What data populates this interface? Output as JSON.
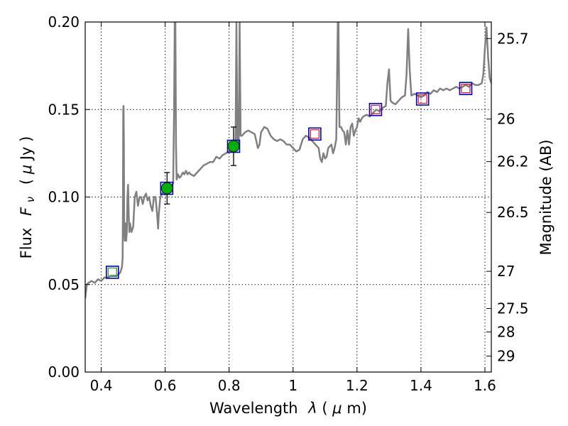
{
  "chart_data": {
    "type": "line",
    "title": "",
    "xlabel": "Wavelength",
    "xlabel_symbol": "λ",
    "xlabel_unit_open": " (",
    "xlabel_unit_mu": "μ",
    "xlabel_unit_rest": "m)",
    "ylabel": "Flux",
    "ylabel_symbol": "F",
    "ylabel_symbol_sub": "ν",
    "ylabel_unit_open": "( ",
    "ylabel_unit_mu": "μ",
    "ylabel_unit_rest": "Jy )",
    "y2label": "Magnitude (AB)",
    "xlim": [
      0.35,
      1.62
    ],
    "ylim": [
      0.0,
      0.2
    ],
    "grid": true,
    "x_ticks": [
      {
        "value": 0.4,
        "label": "0.4"
      },
      {
        "value": 0.6,
        "label": "0.6"
      },
      {
        "value": 0.8,
        "label": "0.8"
      },
      {
        "value": 1.0,
        "label": "1"
      },
      {
        "value": 1.2,
        "label": "1.2"
      },
      {
        "value": 1.4,
        "label": "1.4"
      },
      {
        "value": 1.6,
        "label": "1.6"
      }
    ],
    "y_ticks": [
      {
        "value": 0.0,
        "label": "0.00"
      },
      {
        "value": 0.05,
        "label": "0.05"
      },
      {
        "value": 0.1,
        "label": "0.10"
      },
      {
        "value": 0.15,
        "label": "0.15"
      },
      {
        "value": 0.2,
        "label": "0.20"
      }
    ],
    "y2_ticks": [
      {
        "value": 25.7,
        "label": "25.7"
      },
      {
        "value": 26.0,
        "label": "26"
      },
      {
        "value": 26.2,
        "label": "26.2"
      },
      {
        "value": 26.5,
        "label": "26.5"
      },
      {
        "value": 27.0,
        "label": "27"
      },
      {
        "value": 27.5,
        "label": "27.5"
      },
      {
        "value": 28.0,
        "label": "28"
      },
      {
        "value": 29.0,
        "label": "29"
      }
    ],
    "model_spectrum": {
      "color": "#808080",
      "points": [
        [
          0.35,
          0.042
        ],
        [
          0.355,
          0.05
        ],
        [
          0.36,
          0.051
        ],
        [
          0.37,
          0.052
        ],
        [
          0.38,
          0.051
        ],
        [
          0.39,
          0.053
        ],
        [
          0.4,
          0.052
        ],
        [
          0.41,
          0.054
        ],
        [
          0.42,
          0.054
        ],
        [
          0.43,
          0.055
        ],
        [
          0.44,
          0.055
        ],
        [
          0.45,
          0.055
        ],
        [
          0.455,
          0.056
        ],
        [
          0.46,
          0.057
        ],
        [
          0.465,
          0.06
        ],
        [
          0.467,
          0.065
        ],
        [
          0.468,
          0.09
        ],
        [
          0.469,
          0.15
        ],
        [
          0.47,
          0.152
        ],
        [
          0.471,
          0.13
        ],
        [
          0.472,
          0.08
        ],
        [
          0.474,
          0.075
        ],
        [
          0.476,
          0.085
        ],
        [
          0.478,
          0.075
        ],
        [
          0.48,
          0.08
        ],
        [
          0.482,
          0.1
        ],
        [
          0.484,
          0.107
        ],
        [
          0.486,
          0.09
        ],
        [
          0.488,
          0.08
        ],
        [
          0.49,
          0.085
        ],
        [
          0.495,
          0.08
        ],
        [
          0.5,
          0.083
        ],
        [
          0.505,
          0.1
        ],
        [
          0.51,
          0.103
        ],
        [
          0.515,
          0.095
        ],
        [
          0.52,
          0.1
        ],
        [
          0.525,
          0.1
        ],
        [
          0.53,
          0.096
        ],
        [
          0.535,
          0.1
        ],
        [
          0.54,
          0.102
        ],
        [
          0.545,
          0.098
        ],
        [
          0.55,
          0.1
        ],
        [
          0.555,
          0.095
        ],
        [
          0.56,
          0.092
        ],
        [
          0.565,
          0.1
        ],
        [
          0.57,
          0.1
        ],
        [
          0.575,
          0.09
        ],
        [
          0.578,
          0.082
        ],
        [
          0.58,
          0.09
        ],
        [
          0.585,
          0.1
        ],
        [
          0.59,
          0.102
        ],
        [
          0.6,
          0.103
        ],
        [
          0.61,
          0.104
        ],
        [
          0.62,
          0.106
        ],
        [
          0.625,
          0.108
        ],
        [
          0.628,
          0.15
        ],
        [
          0.63,
          0.2
        ],
        [
          0.632,
          0.2
        ],
        [
          0.634,
          0.13
        ],
        [
          0.636,
          0.11
        ],
        [
          0.64,
          0.113
        ],
        [
          0.645,
          0.111
        ],
        [
          0.65,
          0.112
        ],
        [
          0.655,
          0.114
        ],
        [
          0.66,
          0.113
        ],
        [
          0.665,
          0.115
        ],
        [
          0.67,
          0.113
        ],
        [
          0.675,
          0.114
        ],
        [
          0.68,
          0.113
        ],
        [
          0.69,
          0.112
        ],
        [
          0.7,
          0.114
        ],
        [
          0.71,
          0.116
        ],
        [
          0.72,
          0.118
        ],
        [
          0.73,
          0.119
        ],
        [
          0.74,
          0.12
        ],
        [
          0.75,
          0.12
        ],
        [
          0.76,
          0.123
        ],
        [
          0.77,
          0.122
        ],
        [
          0.78,
          0.124
        ],
        [
          0.79,
          0.125
        ],
        [
          0.8,
          0.126
        ],
        [
          0.805,
          0.127
        ],
        [
          0.81,
          0.128
        ],
        [
          0.815,
          0.13
        ],
        [
          0.82,
          0.13
        ],
        [
          0.823,
          0.2
        ],
        [
          0.826,
          0.133
        ],
        [
          0.83,
          0.13
        ],
        [
          0.833,
          0.2
        ],
        [
          0.836,
          0.135
        ],
        [
          0.84,
          0.135
        ],
        [
          0.85,
          0.137
        ],
        [
          0.86,
          0.138
        ],
        [
          0.87,
          0.137
        ],
        [
          0.88,
          0.136
        ],
        [
          0.885,
          0.132
        ],
        [
          0.89,
          0.128
        ],
        [
          0.895,
          0.13
        ],
        [
          0.9,
          0.137
        ],
        [
          0.91,
          0.14
        ],
        [
          0.92,
          0.139
        ],
        [
          0.93,
          0.135
        ],
        [
          0.94,
          0.133
        ],
        [
          0.95,
          0.132
        ],
        [
          0.96,
          0.133
        ],
        [
          0.97,
          0.132
        ],
        [
          0.98,
          0.13
        ],
        [
          0.99,
          0.13
        ],
        [
          1.0,
          0.128
        ],
        [
          1.01,
          0.126
        ],
        [
          1.02,
          0.127
        ],
        [
          1.03,
          0.133
        ],
        [
          1.04,
          0.135
        ],
        [
          1.05,
          0.134
        ],
        [
          1.06,
          0.132
        ],
        [
          1.07,
          0.13
        ],
        [
          1.08,
          0.128
        ],
        [
          1.085,
          0.122
        ],
        [
          1.09,
          0.12
        ],
        [
          1.095,
          0.125
        ],
        [
          1.1,
          0.122
        ],
        [
          1.105,
          0.123
        ],
        [
          1.11,
          0.128
        ],
        [
          1.12,
          0.13
        ],
        [
          1.125,
          0.125
        ],
        [
          1.13,
          0.128
        ],
        [
          1.135,
          0.133
        ],
        [
          1.14,
          0.2
        ],
        [
          1.142,
          0.2
        ],
        [
          1.145,
          0.14
        ],
        [
          1.15,
          0.14
        ],
        [
          1.155,
          0.138
        ],
        [
          1.16,
          0.137
        ],
        [
          1.165,
          0.13
        ],
        [
          1.17,
          0.138
        ],
        [
          1.175,
          0.13
        ],
        [
          1.18,
          0.14
        ],
        [
          1.185,
          0.142
        ],
        [
          1.19,
          0.135
        ],
        [
          1.195,
          0.138
        ],
        [
          1.2,
          0.14
        ],
        [
          1.205,
          0.145
        ],
        [
          1.21,
          0.143
        ],
        [
          1.215,
          0.145
        ],
        [
          1.22,
          0.146
        ],
        [
          1.23,
          0.147
        ],
        [
          1.24,
          0.146
        ],
        [
          1.25,
          0.148
        ],
        [
          1.26,
          0.15
        ],
        [
          1.27,
          0.149
        ],
        [
          1.28,
          0.151
        ],
        [
          1.29,
          0.152
        ],
        [
          1.295,
          0.165
        ],
        [
          1.3,
          0.173
        ],
        [
          1.305,
          0.155
        ],
        [
          1.31,
          0.154
        ],
        [
          1.32,
          0.153
        ],
        [
          1.33,
          0.155
        ],
        [
          1.34,
          0.157
        ],
        [
          1.35,
          0.158
        ],
        [
          1.355,
          0.17
        ],
        [
          1.36,
          0.196
        ],
        [
          1.365,
          0.172
        ],
        [
          1.37,
          0.158
        ],
        [
          1.38,
          0.159
        ],
        [
          1.39,
          0.158
        ],
        [
          1.4,
          0.157
        ],
        [
          1.41,
          0.158
        ],
        [
          1.42,
          0.16
        ],
        [
          1.43,
          0.159
        ],
        [
          1.44,
          0.161
        ],
        [
          1.45,
          0.16
        ],
        [
          1.46,
          0.162
        ],
        [
          1.47,
          0.161
        ],
        [
          1.48,
          0.162
        ],
        [
          1.49,
          0.161
        ],
        [
          1.5,
          0.162
        ],
        [
          1.51,
          0.163
        ],
        [
          1.52,
          0.162
        ],
        [
          1.53,
          0.163
        ],
        [
          1.54,
          0.164
        ],
        [
          1.55,
          0.163
        ],
        [
          1.56,
          0.165
        ],
        [
          1.57,
          0.164
        ],
        [
          1.58,
          0.164
        ],
        [
          1.59,
          0.165
        ],
        [
          1.595,
          0.17
        ],
        [
          1.6,
          0.185
        ],
        [
          1.605,
          0.197
        ],
        [
          1.61,
          0.18
        ],
        [
          1.615,
          0.168
        ],
        [
          1.62,
          0.165
        ]
      ]
    },
    "model_photometry": [
      {
        "x": 0.435,
        "y": 0.057,
        "box_color": "#0000cc",
        "inner_color": "#2ca02c"
      },
      {
        "x": 0.605,
        "y": 0.105,
        "box_color": "#0000cc",
        "inner_color": "#2ca02c"
      },
      {
        "x": 0.814,
        "y": 0.129,
        "box_color": "#0000cc",
        "inner_color": "#2ca02c"
      },
      {
        "x": 1.068,
        "y": 0.136,
        "box_color": "#0000cc",
        "inner_color": "#d62728"
      },
      {
        "x": 1.258,
        "y": 0.15,
        "box_color": "#0000cc",
        "inner_color": "#d62728"
      },
      {
        "x": 1.405,
        "y": 0.156,
        "box_color": "#0000cc",
        "inner_color": "#d62728"
      },
      {
        "x": 1.54,
        "y": 0.162,
        "box_color": "#0000cc",
        "inner_color": "#d62728"
      }
    ],
    "observed": [
      {
        "x": 0.606,
        "y": 0.105,
        "yerr": 0.009,
        "color": "#00b000"
      },
      {
        "x": 0.814,
        "y": 0.129,
        "yerr": 0.011,
        "color": "#00b000"
      }
    ]
  }
}
